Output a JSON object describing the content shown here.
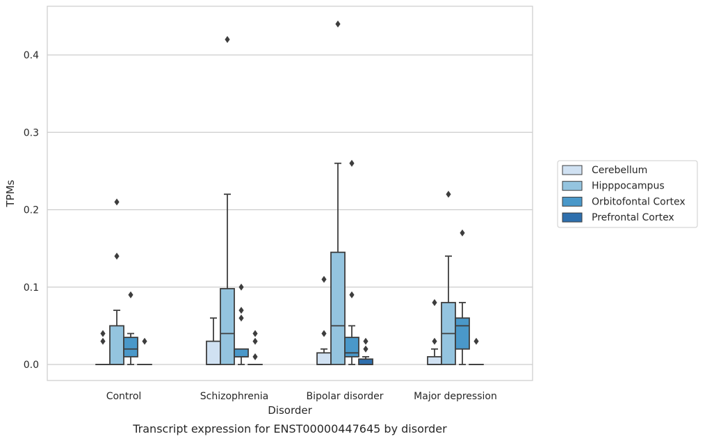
{
  "chart_data": {
    "type": "box",
    "caption": "Transcript expression for ENST00000447645 by disorder",
    "xlabel": "Disorder",
    "ylabel": "TPMs",
    "ylim": [
      -0.021,
      0.464
    ],
    "yticks": [
      0.0,
      0.1,
      0.2,
      0.3,
      0.4
    ],
    "ytick_labels": [
      "0.0",
      "0.1",
      "0.2",
      "0.3",
      "0.4"
    ],
    "grid": "horizontal",
    "legend_position": "right",
    "categories": [
      "Control",
      "Schizophrenia",
      "Bipolar disorder",
      "Major depression"
    ],
    "series": [
      {
        "name": "Cerebellum",
        "color": "#d0e1f2",
        "boxes": [
          {
            "whisker_low": 0,
            "q1": 0,
            "median": 0,
            "q3": 0,
            "whisker_high": 0,
            "outliers": [
              0.03,
              0.04
            ]
          },
          {
            "whisker_low": 0,
            "q1": 0,
            "median": 0,
            "q3": 0.03,
            "whisker_high": 0.06,
            "outliers": []
          },
          {
            "whisker_low": 0,
            "q1": 0,
            "median": 0,
            "q3": 0.015,
            "whisker_high": 0.02,
            "outliers": [
              0.04,
              0.11
            ]
          },
          {
            "whisker_low": 0,
            "q1": 0,
            "median": 0,
            "q3": 0.01,
            "whisker_high": 0.02,
            "outliers": [
              0.03,
              0.08
            ]
          }
        ]
      },
      {
        "name": "Hipppocampus",
        "color": "#94c4df",
        "boxes": [
          {
            "whisker_low": 0,
            "q1": 0,
            "median": 0,
            "q3": 0.05,
            "whisker_high": 0.07,
            "outliers": [
              0.14,
              0.21
            ]
          },
          {
            "whisker_low": 0,
            "q1": 0,
            "median": 0.04,
            "q3": 0.098,
            "whisker_high": 0.22,
            "outliers": [
              0.42
            ]
          },
          {
            "whisker_low": 0,
            "q1": 0,
            "median": 0.05,
            "q3": 0.145,
            "whisker_high": 0.26,
            "outliers": [
              0.44
            ]
          },
          {
            "whisker_low": 0,
            "q1": 0,
            "median": 0.04,
            "q3": 0.08,
            "whisker_high": 0.14,
            "outliers": [
              0.22
            ]
          }
        ]
      },
      {
        "name": "Orbitofontal Cortex",
        "color": "#4a98c9",
        "boxes": [
          {
            "whisker_low": 0,
            "q1": 0.01,
            "median": 0.02,
            "q3": 0.035,
            "whisker_high": 0.04,
            "outliers": [
              0.09
            ]
          },
          {
            "whisker_low": 0,
            "q1": 0.01,
            "median": 0.01,
            "q3": 0.02,
            "whisker_high": 0.02,
            "outliers": [
              0.06,
              0.07,
              0.1
            ]
          },
          {
            "whisker_low": 0,
            "q1": 0.01,
            "median": 0.015,
            "q3": 0.035,
            "whisker_high": 0.05,
            "outliers": [
              0.09,
              0.26
            ]
          },
          {
            "whisker_low": 0,
            "q1": 0.02,
            "median": 0.05,
            "q3": 0.06,
            "whisker_high": 0.08,
            "outliers": [
              0.17
            ]
          }
        ]
      },
      {
        "name": "Prefrontal Cortex",
        "color": "#2e6fad",
        "boxes": [
          {
            "whisker_low": 0,
            "q1": 0,
            "median": 0,
            "q3": 0,
            "whisker_high": 0,
            "outliers": [
              0.03
            ]
          },
          {
            "whisker_low": 0,
            "q1": 0,
            "median": 0,
            "q3": 0,
            "whisker_high": 0,
            "outliers": [
              0.01,
              0.03,
              0.04
            ]
          },
          {
            "whisker_low": 0,
            "q1": 0,
            "median": 0,
            "q3": 0.007,
            "whisker_high": 0.01,
            "outliers": [
              0.02,
              0.03
            ]
          },
          {
            "whisker_low": 0,
            "q1": 0,
            "median": 0,
            "q3": 0,
            "whisker_high": 0,
            "outliers": [
              0.03
            ]
          }
        ]
      }
    ]
  }
}
